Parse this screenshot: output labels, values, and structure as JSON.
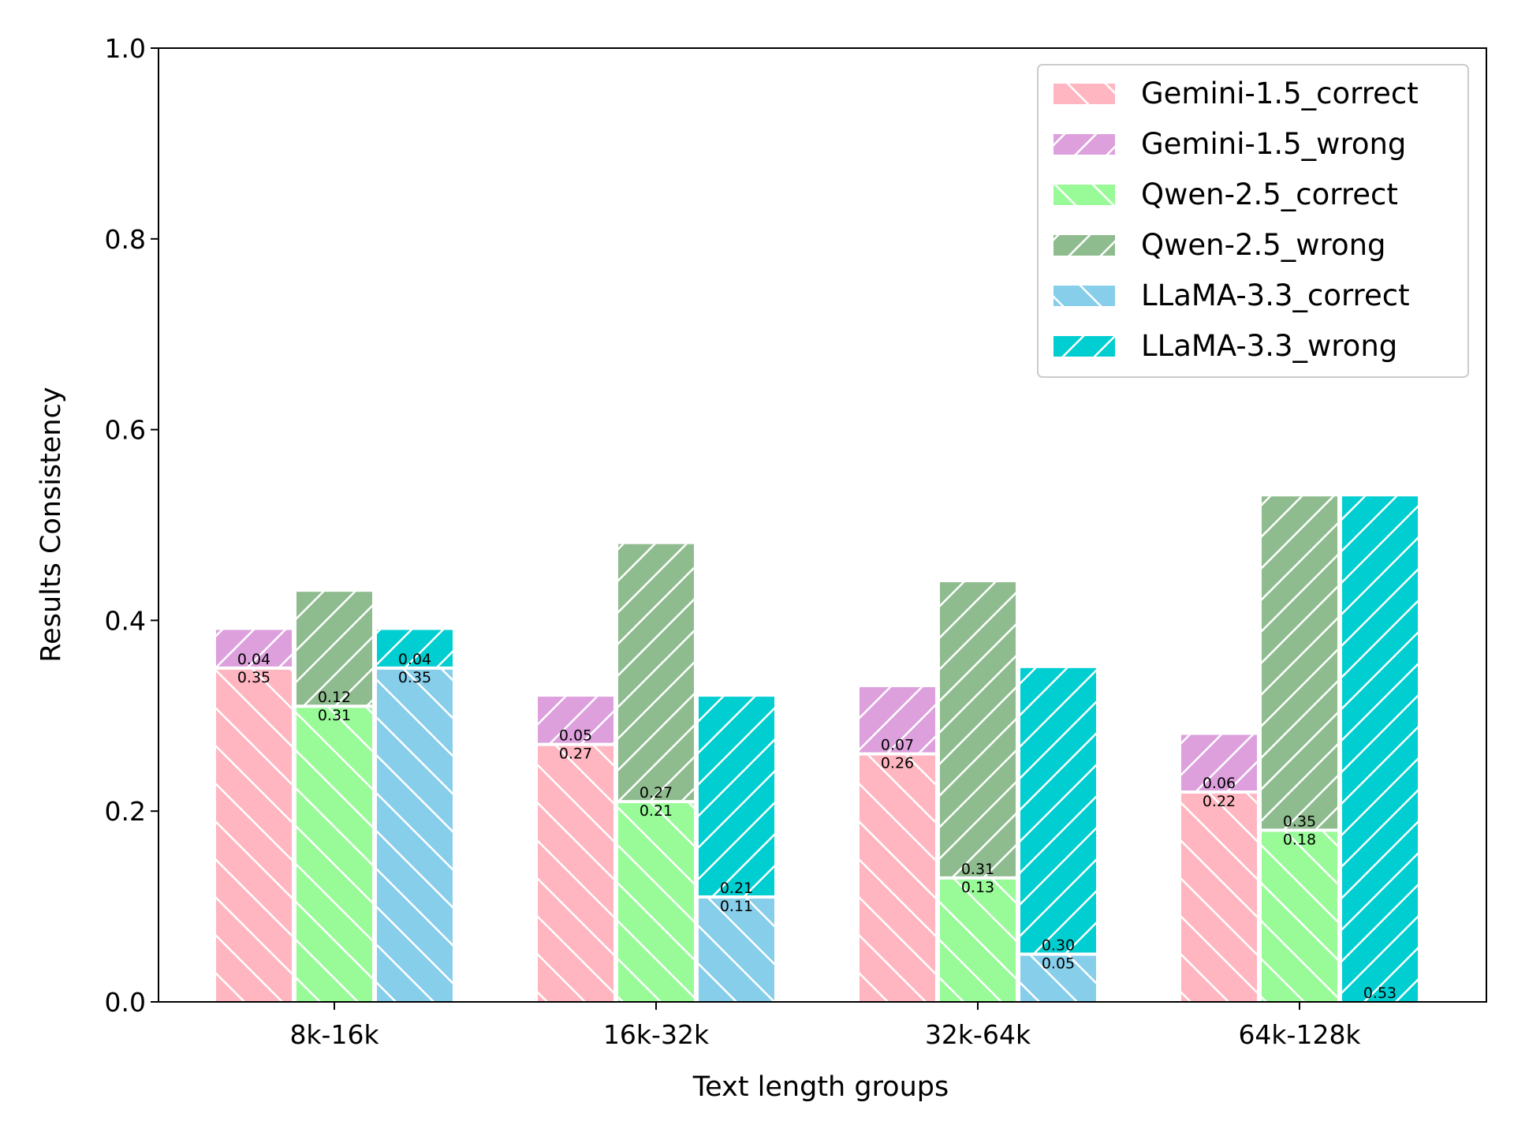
{
  "chart_data": {
    "type": "bar",
    "stacked": true,
    "xlabel": "Text length groups",
    "ylabel": "Results Consistency",
    "ylim": [
      0,
      1.0
    ],
    "yticks": [
      "0.0",
      "0.2",
      "0.4",
      "0.6",
      "0.8",
      "1.0"
    ],
    "categories": [
      "8k-16k",
      "16k-32k",
      "32k-64k",
      "64k-128k"
    ],
    "legend_position": "top-right",
    "grid": false,
    "models": [
      {
        "name": "Gemini-1.5",
        "correct": {
          "name": "Gemini-1.5_correct",
          "color": "#FFB6C1",
          "hatch": "backslash",
          "values": [
            0.35,
            0.27,
            0.26,
            0.22
          ],
          "labels": [
            "0.35",
            "0.27",
            "0.26",
            "0.22"
          ]
        },
        "wrong": {
          "name": "Gemini-1.5_wrong",
          "color": "#DDA0DD",
          "hatch": "slash",
          "values": [
            0.04,
            0.05,
            0.07,
            0.06
          ],
          "labels": [
            "0.04",
            "0.05",
            "0.07",
            "0.06"
          ]
        }
      },
      {
        "name": "Qwen-2.5",
        "correct": {
          "name": "Qwen-2.5_correct",
          "color": "#98FB98",
          "hatch": "backslash",
          "values": [
            0.31,
            0.21,
            0.13,
            0.18
          ],
          "labels": [
            "0.31",
            "0.21",
            "0.13",
            "0.18"
          ]
        },
        "wrong": {
          "name": "Qwen-2.5_wrong",
          "color": "#8FBC8F",
          "hatch": "slash",
          "values": [
            0.12,
            0.27,
            0.31,
            0.35
          ],
          "labels": [
            "0.12",
            "0.27",
            "0.31",
            "0.35"
          ]
        }
      },
      {
        "name": "LLaMA-3.3",
        "correct": {
          "name": "LLaMA-3.3_correct",
          "color": "#87CEEB",
          "hatch": "backslash",
          "values": [
            0.35,
            0.11,
            0.05,
            0.0
          ],
          "labels": [
            "0.35",
            "0.11",
            "0.05",
            ""
          ]
        },
        "wrong": {
          "name": "LLaMA-3.3_wrong",
          "color": "#00CED1",
          "hatch": "slash",
          "values": [
            0.04,
            0.21,
            0.3,
            0.53
          ],
          "labels": [
            "0.04",
            "0.21",
            "0.30",
            "0.53"
          ]
        }
      }
    ]
  }
}
